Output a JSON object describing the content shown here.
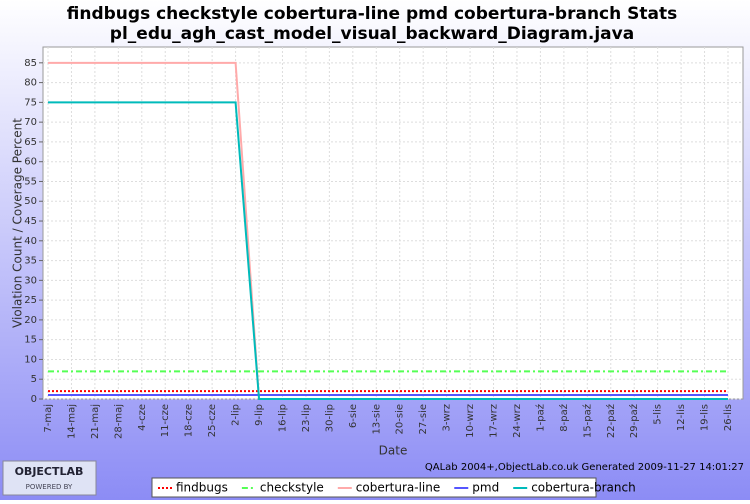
{
  "chart_data": {
    "type": "line",
    "title": "findbugs checkstyle cobertura-line pmd cobertura-branch  Stats",
    "subtitle": "pl_edu_agh_cast_model_visual_backward_Diagram.java",
    "x_label": "Date",
    "y_label": "Violation Count / Coverage Percent",
    "categories": [
      "7-maj",
      "14-maj",
      "21-maj",
      "28-maj",
      "4-cze",
      "11-cze",
      "18-cze",
      "25-cze",
      "2-lip",
      "9-lip",
      "16-lip",
      "23-lip",
      "30-lip",
      "6-sie",
      "13-sie",
      "20-sie",
      "27-sie",
      "3-wrz",
      "10-wrz",
      "17-wrz",
      "24-wrz",
      "1-paź",
      "8-paź",
      "15-paź",
      "22-paź",
      "29-paź",
      "5-lis",
      "12-lis",
      "19-lis",
      "26-lis"
    ],
    "series": [
      {
        "name": "findbugs",
        "color": "#ff0000",
        "dash": "2,2",
        "values": [
          2,
          2,
          2,
          2,
          2,
          2,
          2,
          2,
          2,
          2,
          2,
          2,
          2,
          2,
          2,
          2,
          2,
          2,
          2,
          2,
          2,
          2,
          2,
          2,
          2,
          2,
          2,
          2,
          2,
          2
        ]
      },
      {
        "name": "checkstyle",
        "color": "#55ff55",
        "dash": "6,3,2,3",
        "values": [
          7,
          7,
          7,
          7,
          7,
          7,
          7,
          7,
          7,
          7,
          7,
          7,
          7,
          7,
          7,
          7,
          7,
          7,
          7,
          7,
          7,
          7,
          7,
          7,
          7,
          7,
          7,
          7,
          7,
          7
        ]
      },
      {
        "name": "cobertura-line",
        "color": "#ffaaaa",
        "dash": "",
        "values": [
          85,
          85,
          85,
          85,
          85,
          85,
          85,
          85,
          85,
          0,
          0,
          0,
          0,
          0,
          0,
          0,
          0,
          0,
          0,
          0,
          0,
          0,
          0,
          0,
          0,
          0,
          0,
          0,
          0,
          0
        ]
      },
      {
        "name": "pmd",
        "color": "#5555ff",
        "dash": "",
        "values": [
          1,
          1,
          1,
          1,
          1,
          1,
          1,
          1,
          1,
          1,
          1,
          1,
          1,
          1,
          1,
          1,
          1,
          1,
          1,
          1,
          1,
          1,
          1,
          1,
          1,
          1,
          1,
          1,
          1,
          1
        ]
      },
      {
        "name": "cobertura-branch",
        "color": "#00bbbb",
        "dash": "",
        "values": [
          75,
          75,
          75,
          75,
          75,
          75,
          75,
          75,
          75,
          0,
          0,
          0,
          0,
          0,
          0,
          0,
          0,
          0,
          0,
          0,
          0,
          0,
          0,
          0,
          0,
          0,
          0,
          0,
          0,
          0
        ]
      }
    ],
    "ylim": [
      0,
      89
    ],
    "yticks": [
      0,
      5,
      10,
      15,
      20,
      25,
      30,
      35,
      40,
      45,
      50,
      55,
      60,
      65,
      70,
      75,
      80,
      85
    ],
    "grid": true,
    "footer": "QALab 2004+,ObjectLab.co.uk Generated 2009-11-27 14:01:27",
    "logo": {
      "name": "OBJECTLAB",
      "tagline": "POWERED BY"
    }
  }
}
